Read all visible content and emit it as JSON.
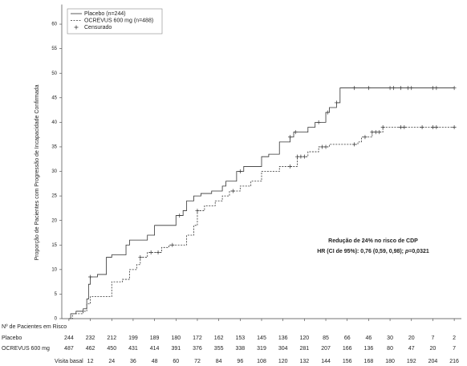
{
  "chart_data": {
    "type": "step",
    "y_label": "Proporção de Pacientes com Progressão de Incapacidade Confirmada",
    "xlim": [
      -4,
      220
    ],
    "ylim": [
      0,
      64
    ],
    "yticks": [
      0,
      5,
      10,
      15,
      20,
      25,
      30,
      35,
      40,
      45,
      50,
      55,
      60
    ],
    "xticks": [
      {
        "value": 0,
        "label": "Visita basal"
      },
      12,
      24,
      36,
      48,
      60,
      72,
      84,
      96,
      108,
      120,
      132,
      144,
      156,
      168,
      180,
      192,
      204,
      216
    ],
    "censor_label": "Censurado",
    "series": [
      {
        "name": "Placebo (n=244)",
        "color": "#333333",
        "dash": false,
        "x": [
          0,
          1,
          4,
          8,
          10,
          11,
          12,
          16,
          21,
          24,
          32,
          34,
          44,
          48,
          60,
          64,
          66,
          70,
          74,
          80,
          86,
          88,
          94,
          98,
          108,
          112,
          118,
          124,
          126,
          134,
          138,
          144,
          146,
          150,
          152,
          216
        ],
        "values": [
          0,
          1,
          1.5,
          2,
          4,
          7,
          8.5,
          9,
          12.5,
          13,
          15,
          16,
          17,
          19,
          21,
          22,
          24,
          25,
          25.5,
          26,
          27,
          28,
          30,
          31,
          33,
          33.5,
          36,
          37,
          38,
          39,
          40,
          42,
          43,
          44,
          47,
          47
        ],
        "censored_x": [
          12,
          62,
          96,
          124,
          127,
          140,
          145,
          150,
          160,
          168,
          180,
          182,
          186,
          190,
          192,
          204,
          206,
          216
        ]
      },
      {
        "name": "OCREVUS 600 mg (n=488)",
        "color": "#333333",
        "dash": true,
        "x": [
          0,
          2,
          8,
          10,
          12,
          24,
          30,
          34,
          38,
          40,
          44,
          52,
          56,
          66,
          70,
          72,
          76,
          82,
          86,
          90,
          96,
          102,
          108,
          118,
          128,
          134,
          140,
          146,
          162,
          164,
          170,
          176,
          216
        ],
        "values": [
          0,
          1,
          1.5,
          3,
          4.5,
          7.5,
          8,
          10,
          11,
          12.5,
          13.5,
          14.5,
          15,
          17,
          19,
          22,
          23,
          24,
          25,
          26,
          27,
          28,
          30,
          31,
          33,
          34,
          35,
          35.5,
          36,
          37,
          38,
          39,
          39
        ],
        "censored_x": [
          40,
          46,
          50,
          58,
          72,
          92,
          124,
          128,
          130,
          132,
          142,
          144,
          160,
          166,
          170,
          172,
          174,
          176,
          186,
          188,
          198,
          204,
          206,
          216
        ]
      }
    ],
    "annotation": {
      "line1": "Redução de 24% no risco de CDP",
      "line2_prefix": "HR (CI de 95%): 0,76 (0,59, 0,98); ",
      "line2_italic": "p",
      "line2_suffix": "=0,0321"
    },
    "risk_table": {
      "title": "Nº de Pacientes em Risco",
      "rows": [
        {
          "label": "Placebo",
          "values": [
            244,
            232,
            212,
            199,
            189,
            180,
            172,
            162,
            153,
            145,
            136,
            120,
            85,
            66,
            46,
            30,
            20,
            7,
            2
          ]
        },
        {
          "label": "OCREVUS 600 mg",
          "values": [
            487,
            462,
            450,
            431,
            414,
            391,
            376,
            355,
            338,
            319,
            304,
            281,
            207,
            166,
            136,
            80,
            47,
            20,
            7
          ]
        }
      ]
    }
  }
}
